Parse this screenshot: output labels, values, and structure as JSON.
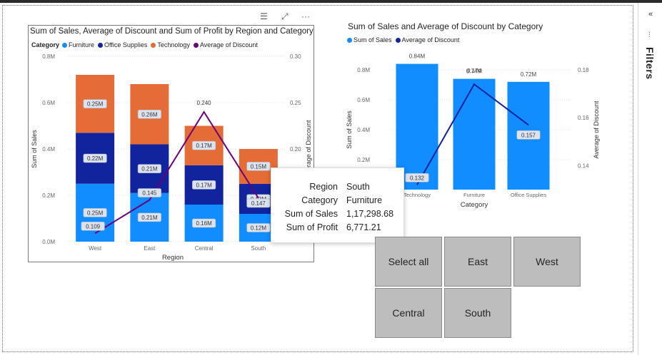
{
  "pane": {
    "filters_label": "Filters",
    "collapse_icon": "double-chevron-left-icon",
    "funnel_icon": "filter-funnel-icon"
  },
  "visual_header": {
    "filter_icon": "filter-lines-icon",
    "focus_icon": "focus-mode-icon",
    "more_icon": "more-options-icon"
  },
  "colors": {
    "furniture": "#118DFF",
    "office_supplies": "#12239E",
    "technology": "#E66C37",
    "discount_line": "#6B007B",
    "slicer_bg": "#BDBDBD"
  },
  "chart1": {
    "title": "Sum of Sales, Average of Discount and Sum of Profit by Region and Category",
    "legend_title": "Category",
    "legend": [
      "Furniture",
      "Office Supplies",
      "Technology",
      "Average of Discount"
    ],
    "xlabel": "Region",
    "ylabel": "Sum of Sales",
    "y2label": "Average of Discount",
    "y_ticks": [
      "0.8M",
      "0.6M",
      "0.4M",
      "0.2M",
      "0.0M"
    ],
    "y2_ticks": [
      "0.30",
      "0.25",
      "0.20"
    ]
  },
  "chart2": {
    "title": "Sum of Sales and Average of Discount by Category",
    "legend": [
      "Sum of Sales",
      "Average of Discount"
    ],
    "xlabel": "Category",
    "ylabel": "Sum of Sales",
    "y2label": "Average of Discount",
    "y_ticks": [
      "0.8M",
      "0.6M",
      "0.4M",
      "0.2M"
    ],
    "y2_ticks": [
      "0.18",
      "0.16",
      "0.14"
    ]
  },
  "chart_data": [
    {
      "type": "bar",
      "stacked": true,
      "categories": [
        "West",
        "East",
        "Central",
        "South"
      ],
      "series": [
        {
          "name": "Furniture",
          "values": [
            0.25,
            0.21,
            0.16,
            0.12
          ],
          "labels": [
            "0.25M",
            "0.21M",
            "0.16M",
            "0.12M"
          ]
        },
        {
          "name": "Office Supplies",
          "values": [
            0.22,
            0.21,
            0.17,
            0.13
          ],
          "labels": [
            "0.22M",
            "0.21M",
            "0.17M",
            "0.13M"
          ]
        },
        {
          "name": "Technology",
          "values": [
            0.25,
            0.26,
            0.17,
            0.15
          ],
          "labels": [
            "0.25M",
            "0.26M",
            "0.17M",
            "0.15M"
          ]
        }
      ],
      "line": {
        "name": "Average of Discount",
        "values": [
          0.109,
          0.145,
          0.24,
          0.147
        ],
        "labels": [
          "0.109",
          "0.145",
          "0.240",
          "0.147"
        ]
      },
      "ylim": [
        0,
        0.8
      ],
      "y2lim": [
        0.1,
        0.3
      ]
    },
    {
      "type": "bar",
      "categories": [
        "Technology",
        "Furniture",
        "Office Supplies"
      ],
      "series": [
        {
          "name": "Sum of Sales",
          "values": [
            0.84,
            0.74,
            0.72
          ],
          "labels": [
            "0.84M",
            "0.74M",
            "0.72M"
          ]
        }
      ],
      "line": {
        "name": "Average of Discount",
        "values": [
          0.132,
          0.174,
          0.157
        ],
        "labels": [
          "0.132",
          "0.174",
          "0.157"
        ]
      },
      "ylim": [
        0,
        0.8
      ],
      "y2lim": [
        0.13,
        0.18
      ]
    }
  ],
  "tooltip": {
    "rows": [
      {
        "key": "Region",
        "value": "South"
      },
      {
        "key": "Category",
        "value": "Furniture"
      },
      {
        "key": "Sum of Sales",
        "value": "1,17,298.68"
      },
      {
        "key": "Sum of Profit",
        "value": "6,771.21"
      }
    ]
  },
  "slicer": {
    "buttons": [
      "Select all",
      "East",
      "West",
      "Central",
      "South"
    ]
  }
}
